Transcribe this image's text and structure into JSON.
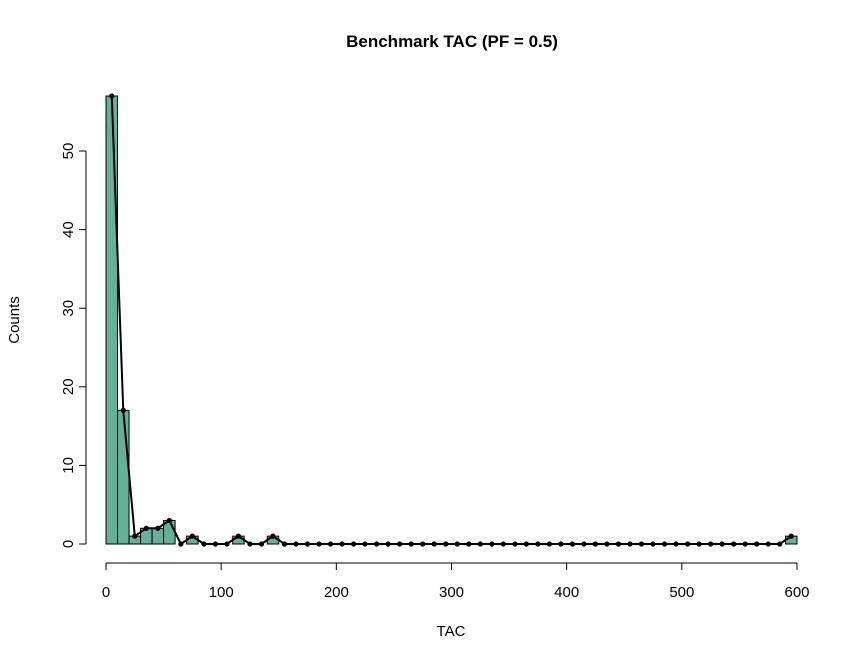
{
  "chart_data": {
    "type": "bar",
    "title": "Benchmark TAC (PF = 0.5)",
    "xlabel": "TAC",
    "ylabel": "Counts",
    "xlim": [
      0,
      600
    ],
    "ylim": [
      0,
      57
    ],
    "x_ticks": [
      "0",
      "100",
      "200",
      "300",
      "400",
      "500",
      "600"
    ],
    "y_ticks": [
      "0",
      "10",
      "20",
      "30",
      "40",
      "50"
    ],
    "bin_width": 10,
    "bin_starts": [
      0,
      10,
      20,
      30,
      40,
      50,
      60,
      70,
      80,
      90,
      100,
      110,
      120,
      130,
      140,
      150,
      160,
      170,
      180,
      190,
      200,
      210,
      220,
      230,
      240,
      250,
      260,
      270,
      280,
      290,
      300,
      310,
      320,
      330,
      340,
      350,
      360,
      370,
      380,
      390,
      400,
      410,
      420,
      430,
      440,
      450,
      460,
      470,
      480,
      490,
      500,
      510,
      520,
      530,
      540,
      550,
      560,
      570,
      580,
      590
    ],
    "counts": [
      57,
      17,
      1,
      2,
      2,
      3,
      0,
      1,
      0,
      0,
      0,
      1,
      0,
      0,
      1,
      0,
      0,
      0,
      0,
      0,
      0,
      0,
      0,
      0,
      0,
      0,
      0,
      0,
      0,
      0,
      0,
      0,
      0,
      0,
      0,
      0,
      0,
      0,
      0,
      0,
      0,
      0,
      0,
      0,
      0,
      0,
      0,
      0,
      0,
      0,
      0,
      0,
      0,
      0,
      0,
      0,
      0,
      0,
      0,
      1
    ],
    "bar_color": "#66b09a",
    "line_color": "#000000",
    "grid": false,
    "legend": "none"
  }
}
